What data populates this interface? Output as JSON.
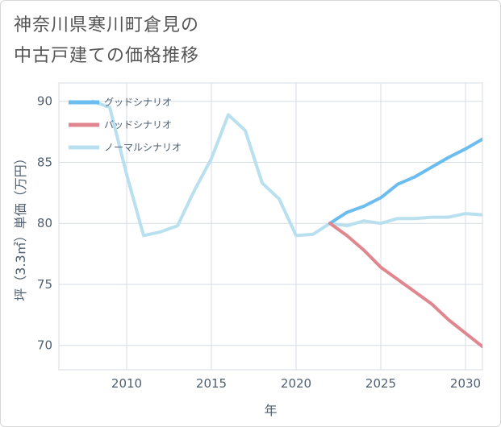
{
  "title_lines": [
    "神奈川県寒川町倉見の",
    "中古戸建ての価格推移"
  ],
  "chart_data": {
    "type": "line",
    "xlabel": "年",
    "ylabel": "坪（3.3㎡）単価（万円）",
    "xlim": [
      2006,
      2031
    ],
    "ylim": [
      68,
      91.5
    ],
    "xticks": [
      2010,
      2015,
      2020,
      2025,
      2030
    ],
    "yticks": [
      70,
      75,
      80,
      85,
      90
    ],
    "grid": true,
    "legend_position": "top-left",
    "series": [
      {
        "name": "グッドシナリオ",
        "color": "#6bbcef",
        "x": [
          2022,
          2023,
          2024,
          2025,
          2026,
          2027,
          2028,
          2029,
          2030,
          2031
        ],
        "y": [
          80.0,
          80.9,
          81.4,
          82.1,
          83.2,
          83.8,
          84.6,
          85.4,
          86.1,
          86.9
        ]
      },
      {
        "name": "バッドシナリオ",
        "color": "#e0868e",
        "x": [
          2022,
          2023,
          2024,
          2025,
          2026,
          2027,
          2028,
          2029,
          2030,
          2031
        ],
        "y": [
          80.0,
          79.0,
          77.8,
          76.4,
          75.4,
          74.4,
          73.4,
          72.1,
          71.0,
          69.9
        ]
      },
      {
        "name": "ノーマルシナリオ",
        "color": "#b9e0ef",
        "x": [
          2008,
          2009,
          2010,
          2011,
          2012,
          2013,
          2014,
          2015,
          2016,
          2017,
          2018,
          2019,
          2020,
          2021,
          2022,
          2023,
          2024,
          2025,
          2026,
          2027,
          2028,
          2029,
          2030,
          2031
        ],
        "y": [
          90.0,
          89.5,
          84.0,
          79.0,
          79.3,
          79.8,
          82.7,
          85.3,
          88.9,
          87.6,
          83.3,
          82.0,
          79.0,
          79.1,
          80.0,
          79.8,
          80.2,
          80.0,
          80.4,
          80.4,
          80.5,
          80.5,
          80.8,
          80.7
        ]
      }
    ]
  }
}
